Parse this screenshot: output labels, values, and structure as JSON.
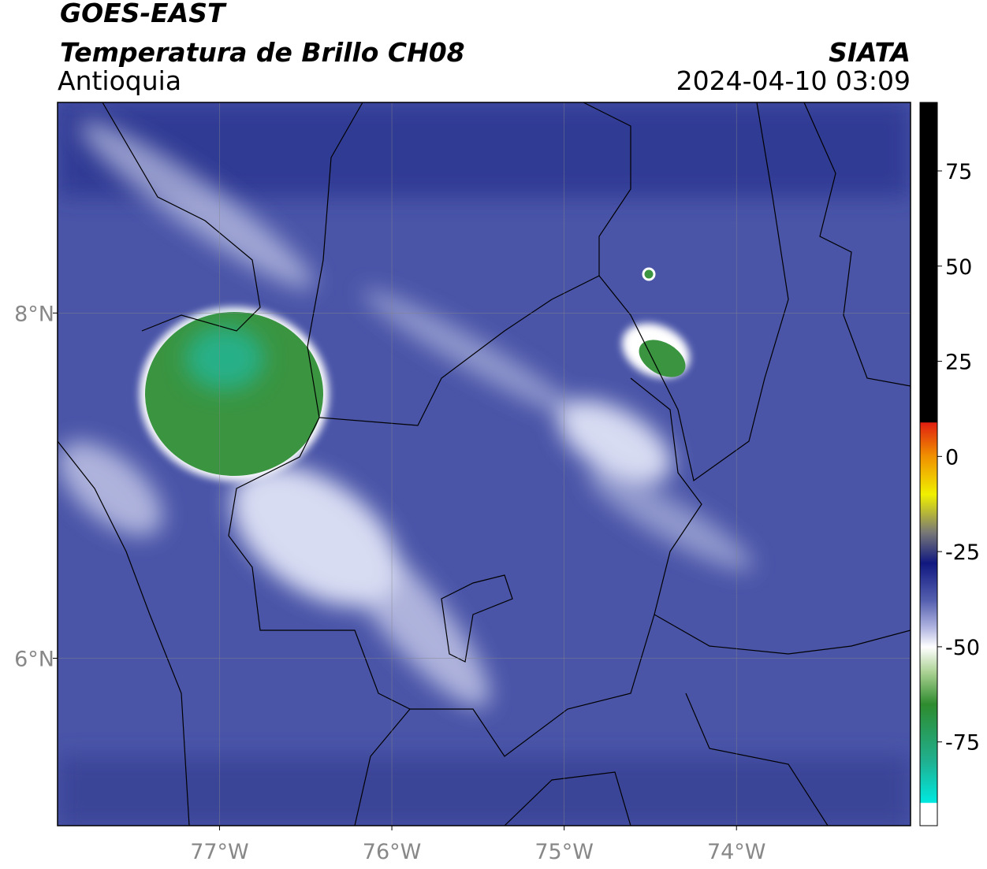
{
  "header": {
    "satellite": "GOES-EAST",
    "product": "Temperatura de Brillo CH08",
    "region": "Antioquia",
    "agency": "SIATA",
    "datetime": "2024-04-10 03:09"
  },
  "map": {
    "xlim": [
      -77.94,
      -72.99
    ],
    "ylim": [
      5.03,
      9.22
    ],
    "xticks": [
      {
        "value": -77,
        "label": "77°W"
      },
      {
        "value": -76,
        "label": "76°W"
      },
      {
        "value": -75,
        "label": "75°W"
      },
      {
        "value": -74,
        "label": "74°W"
      }
    ],
    "yticks": [
      {
        "value": 6,
        "label": "6°N"
      },
      {
        "value": 8,
        "label": "8°N"
      }
    ],
    "grid": true
  },
  "colorbar": {
    "lim": [
      -97,
      93
    ],
    "ticks": [
      75,
      50,
      25,
      0,
      -25,
      -50,
      -75
    ]
  }
}
